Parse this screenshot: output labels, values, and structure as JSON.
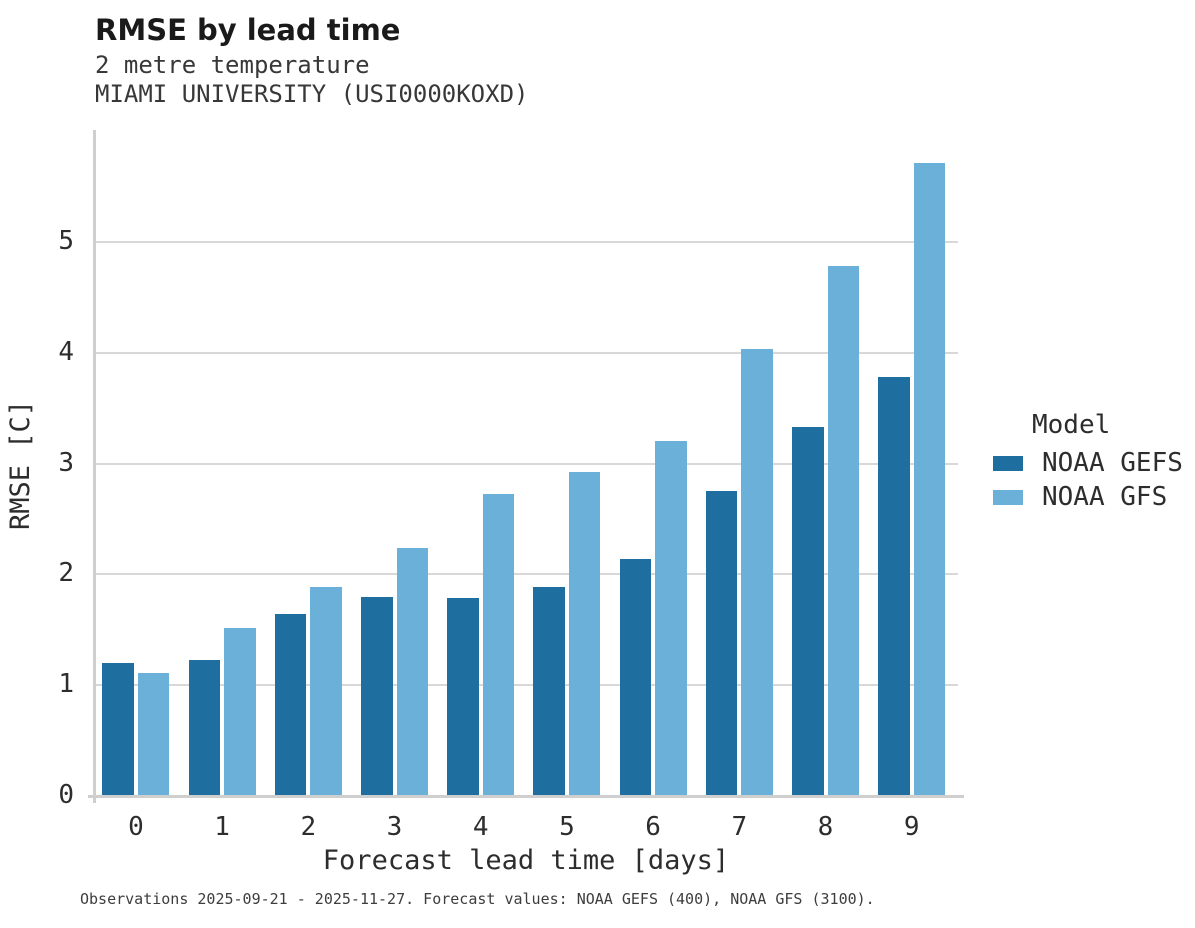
{
  "header": {
    "title": "RMSE by lead time",
    "subtitle": "2 metre temperature",
    "station": "MIAMI UNIVERSITY (USI0000KOXD)"
  },
  "legend": {
    "title": "Model",
    "entries": [
      {
        "label": "NOAA GEFS",
        "color": "#1e6f9f"
      },
      {
        "label": "NOAA GFS",
        "color": "#6bb0d8"
      }
    ]
  },
  "footer": {
    "text": "Observations 2025-09-21 - 2025-11-27. Forecast values: NOAA GEFS (400), NOAA GFS (3100)."
  },
  "chart_data": {
    "type": "bar",
    "title": "RMSE by lead time",
    "subtitle": "2 metre temperature",
    "station": "MIAMI UNIVERSITY (USI0000KOXD)",
    "xlabel": "Forecast lead time [days]",
    "ylabel": "RMSE [C]",
    "categories": [
      0,
      1,
      2,
      3,
      4,
      5,
      6,
      7,
      8,
      9
    ],
    "series": [
      {
        "name": "NOAA GEFS",
        "color": "#1e6f9f",
        "values": [
          1.19,
          1.22,
          1.63,
          1.79,
          1.78,
          1.88,
          2.13,
          2.74,
          3.32,
          3.77
        ]
      },
      {
        "name": "NOAA GFS",
        "color": "#6bb0d8",
        "values": [
          1.1,
          1.51,
          1.88,
          2.23,
          2.72,
          2.91,
          3.19,
          4.02,
          4.77,
          5.7
        ]
      }
    ],
    "ylim": [
      0,
      6
    ],
    "yticks": [
      0,
      1,
      2,
      3,
      4,
      5
    ],
    "grid": true,
    "grid_color": "#d8d8d8",
    "legend_position": "right"
  }
}
